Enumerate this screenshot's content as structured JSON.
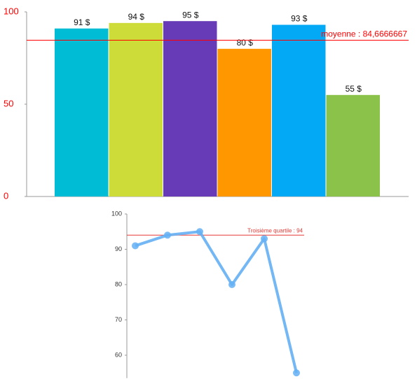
{
  "chart_data": [
    {
      "type": "bar",
      "categories": [
        null,
        null,
        null,
        null,
        null,
        null
      ],
      "values": [
        91,
        94,
        95,
        80,
        93,
        55
      ],
      "value_labels": [
        "91 $",
        "94 $",
        "95 $",
        "80 $",
        "93 $",
        "55 $"
      ],
      "colors": [
        "#00bcd4",
        "#cddc39",
        "#673ab7",
        "#ff9800",
        "#03a9f4",
        "#8bc34a"
      ],
      "ylim": [
        0,
        100
      ],
      "yticks": [
        0,
        50,
        100
      ],
      "reference_line": {
        "value": 84.6666667,
        "label": "moyenne : 84,6666667",
        "color": "#ff0000"
      }
    },
    {
      "type": "line",
      "categories": [
        null,
        null,
        null,
        null,
        null,
        null
      ],
      "values": [
        91,
        94,
        95,
        80,
        93,
        55
      ],
      "color": "#64b0f4",
      "ylim": [
        53.5,
        100
      ],
      "yticks": [
        60,
        70,
        80,
        90,
        100
      ],
      "reference_line": {
        "value": 94,
        "label": "Troisième quartile : 94",
        "color": "#e53935"
      }
    }
  ]
}
